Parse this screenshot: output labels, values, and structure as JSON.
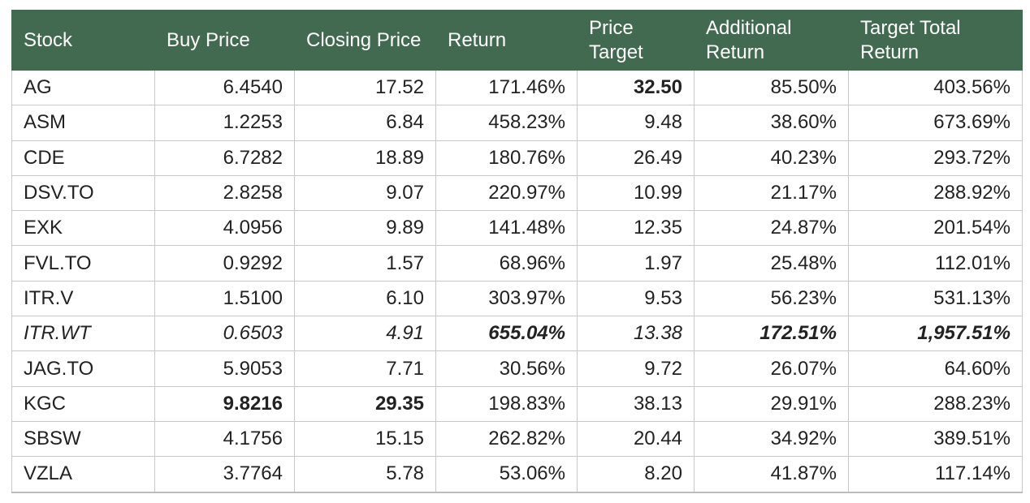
{
  "table": {
    "header": [
      "Stock",
      "Buy Price",
      "Closing Price",
      "Return",
      "Price Target",
      "Additional Return",
      "Target Total Return"
    ],
    "rows": [
      [
        "AG",
        "6.4540",
        "17.52",
        "171.46%",
        "32.50",
        "85.50%",
        "403.56%"
      ],
      [
        "ASM",
        "1.2253",
        "6.84",
        "458.23%",
        "9.48",
        "38.60%",
        "673.69%"
      ],
      [
        "CDE",
        "6.7282",
        "18.89",
        "180.76%",
        "26.49",
        "40.23%",
        "293.72%"
      ],
      [
        "DSV.TO",
        "2.8258",
        "9.07",
        "220.97%",
        "10.99",
        "21.17%",
        "288.92%"
      ],
      [
        "EXK",
        "4.0956",
        "9.89",
        "141.48%",
        "12.35",
        "24.87%",
        "201.54%"
      ],
      [
        "FVL.TO",
        "0.9292",
        "1.57",
        "68.96%",
        "1.97",
        "25.48%",
        "112.01%"
      ],
      [
        "ITR.V",
        "1.5100",
        "6.10",
        "303.97%",
        "9.53",
        "56.23%",
        "531.13%"
      ],
      [
        "ITR.WT",
        "0.6503",
        "4.91",
        "655.04%",
        "13.38",
        "172.51%",
        "1,957.51%"
      ],
      [
        "JAG.TO",
        "5.9053",
        "7.71",
        "30.56%",
        "9.72",
        "26.07%",
        "64.60%"
      ],
      [
        "KGC",
        "9.8216",
        "29.35",
        "198.83%",
        "38.13",
        "29.91%",
        "288.23%"
      ],
      [
        "SBSW",
        "4.1756",
        "15.15",
        "262.82%",
        "20.44",
        "34.92%",
        "389.51%"
      ],
      [
        "VZLA",
        "3.7764",
        "5.78",
        "53.06%",
        "8.20",
        "41.87%",
        "117.14%"
      ]
    ],
    "italic_rows": [
      7
    ],
    "bold_cells": [
      [
        0,
        4
      ],
      [
        7,
        3
      ],
      [
        7,
        5
      ],
      [
        7,
        6
      ],
      [
        9,
        1
      ],
      [
        9,
        2
      ]
    ]
  }
}
